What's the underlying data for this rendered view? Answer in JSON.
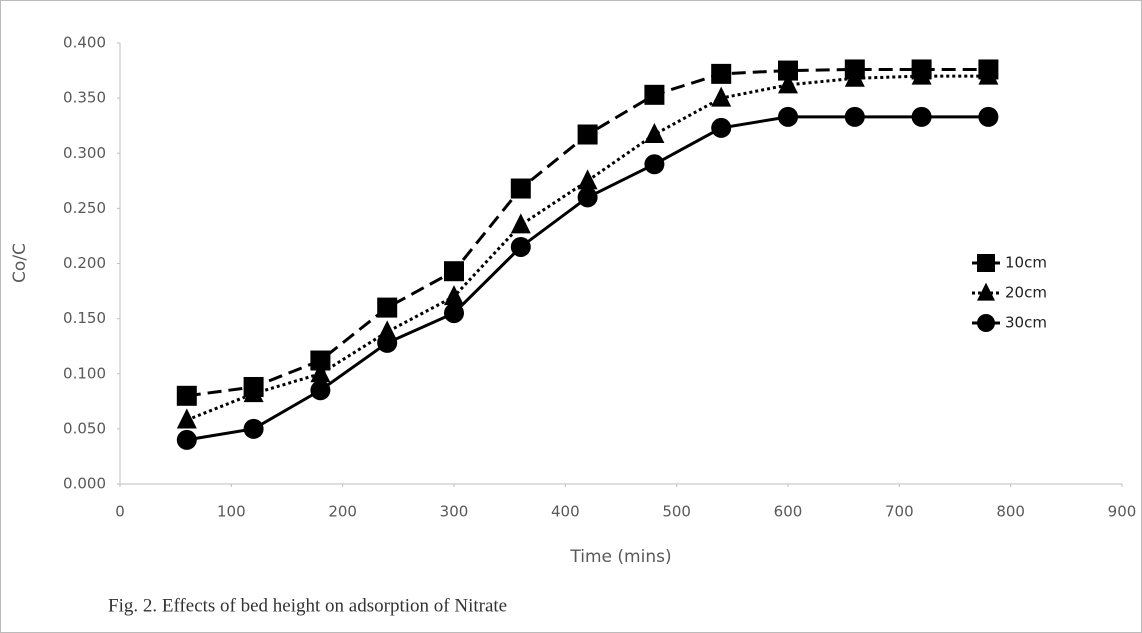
{
  "chart_data": {
    "type": "line",
    "x_label": "Time (mins)",
    "y_label": "Co/C",
    "caption": "Fig. 2. Effects of bed height on adsorption of Nitrate",
    "x": [
      60,
      120,
      180,
      240,
      300,
      360,
      420,
      480,
      540,
      600,
      660,
      720,
      780
    ],
    "series": [
      {
        "name": "10cm",
        "color": "#000000",
        "marker": "square",
        "line_style": "dashed",
        "values": [
          0.08,
          0.088,
          0.112,
          0.16,
          0.193,
          0.268,
          0.317,
          0.353,
          0.372,
          0.375,
          0.376,
          0.376,
          0.376
        ]
      },
      {
        "name": "20cm",
        "color": "#000000",
        "marker": "triangle",
        "line_style": "dotted",
        "values": [
          0.058,
          0.082,
          0.1,
          0.138,
          0.17,
          0.235,
          0.275,
          0.317,
          0.35,
          0.362,
          0.368,
          0.37,
          0.37
        ]
      },
      {
        "name": "30cm",
        "color": "#000000",
        "marker": "circle",
        "line_style": "solid",
        "values": [
          0.04,
          0.05,
          0.085,
          0.128,
          0.155,
          0.215,
          0.26,
          0.29,
          0.323,
          0.333,
          0.333,
          0.333,
          0.333
        ]
      }
    ],
    "xlim": [
      0,
      900
    ],
    "xticks": [
      0,
      100,
      200,
      300,
      400,
      500,
      600,
      700,
      800,
      900
    ],
    "ylim": [
      0,
      0.4
    ],
    "yticks": [
      {
        "value": 0,
        "label": "0.000"
      },
      {
        "value": 0.05,
        "label": "0.050"
      },
      {
        "value": 0.1,
        "label": "0.100"
      },
      {
        "value": 0.15,
        "label": "0.150"
      },
      {
        "value": 0.2,
        "label": "0.200"
      },
      {
        "value": 0.25,
        "label": "0.250"
      },
      {
        "value": 0.3,
        "label": "0.300"
      },
      {
        "value": 0.35,
        "label": "0.350"
      },
      {
        "value": 0.4,
        "label": "0.400"
      }
    ],
    "grid": false,
    "legend": "right"
  }
}
